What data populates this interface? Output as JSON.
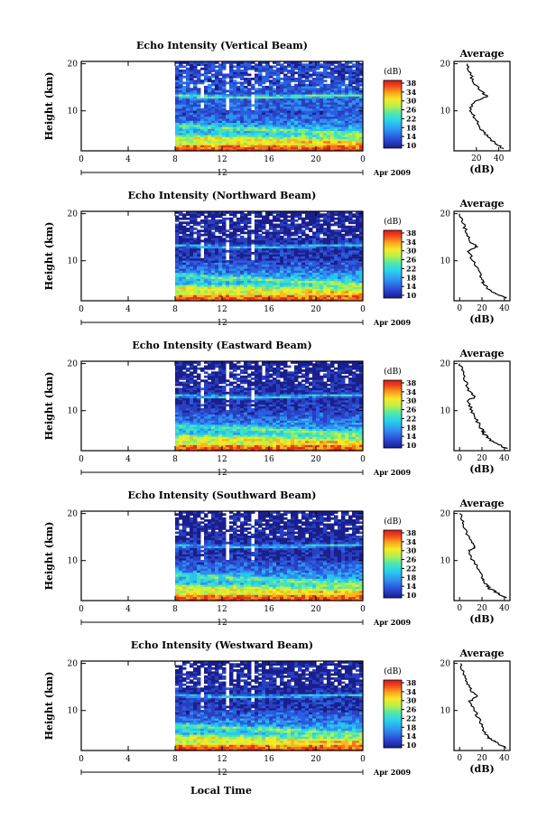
{
  "figure": {
    "xlabel": "Local Time",
    "date_label": "Apr 2009",
    "colorbar_unit": "(dB)",
    "colorbar_ticks": [
      "38",
      "34",
      "30",
      "26",
      "22",
      "18",
      "14",
      "10"
    ],
    "profile_title": "Average",
    "profile_xlabel": "(dB)",
    "height_label": "Height (km)"
  },
  "chart_data": [
    {
      "type": "heatmap",
      "title": "Echo Intensity (Vertical Beam)",
      "xlabel": "",
      "ylabel": "Height (km)",
      "x_ticks": [
        "0",
        "4",
        "8",
        "12",
        "16",
        "20",
        "0"
      ],
      "y_ticks": [
        "20",
        "10"
      ],
      "xlim": [
        0,
        24
      ],
      "ylim": [
        1.5,
        20.5
      ],
      "data_start_hour": 8,
      "date_marker": "12",
      "colorbar": {
        "label": "(dB)",
        "range": [
          10,
          38
        ],
        "ticks": [
          "38",
          "34",
          "30",
          "26",
          "22",
          "18",
          "14",
          "10"
        ]
      },
      "profile": {
        "title": "Average",
        "xlabel": "(dB)",
        "x_ticks": [
          "20",
          "40"
        ],
        "y_ticks": [
          "20",
          "10"
        ],
        "xlim": [
          0,
          50
        ],
        "heights": [
          2,
          3,
          4,
          5,
          6,
          8,
          10,
          12,
          13,
          14,
          16,
          18,
          20
        ],
        "values": [
          43,
          38,
          32,
          28,
          24,
          20,
          14,
          18,
          30,
          25,
          18,
          14,
          12
        ]
      }
    },
    {
      "type": "heatmap",
      "title": "Echo Intensity (Northward Beam)",
      "xlabel": "",
      "ylabel": "Height (km)",
      "x_ticks": [
        "0",
        "4",
        "8",
        "12",
        "16",
        "20",
        "0"
      ],
      "y_ticks": [
        "20",
        "10"
      ],
      "xlim": [
        0,
        24
      ],
      "ylim": [
        1.5,
        20.5
      ],
      "data_start_hour": 8,
      "date_marker": "12",
      "colorbar": {
        "label": "(dB)",
        "range": [
          10,
          38
        ],
        "ticks": [
          "38",
          "34",
          "30",
          "26",
          "22",
          "18",
          "14",
          "10"
        ]
      },
      "profile": {
        "title": "Average",
        "xlabel": "(dB)",
        "x_ticks": [
          "0",
          "20",
          "40"
        ],
        "y_ticks": [
          "20",
          "10"
        ],
        "xlim": [
          -5,
          45
        ],
        "heights": [
          2,
          3,
          4,
          5,
          6,
          8,
          10,
          12,
          13,
          14,
          16,
          18,
          20
        ],
        "values": [
          42,
          32,
          25,
          22,
          20,
          16,
          12,
          8,
          15,
          10,
          6,
          3,
          0
        ]
      }
    },
    {
      "type": "heatmap",
      "title": "Echo Intensity (Eastward Beam)",
      "xlabel": "",
      "ylabel": "Height (km)",
      "x_ticks": [
        "0",
        "4",
        "8",
        "12",
        "16",
        "20",
        "0"
      ],
      "y_ticks": [
        "20",
        "10"
      ],
      "xlim": [
        0,
        24
      ],
      "ylim": [
        1.5,
        20.5
      ],
      "data_start_hour": 8,
      "date_marker": "12",
      "colorbar": {
        "label": "(dB)",
        "range": [
          10,
          38
        ],
        "ticks": [
          "38",
          "34",
          "30",
          "26",
          "22",
          "18",
          "14",
          "10"
        ]
      },
      "profile": {
        "title": "Average",
        "xlabel": "(dB)",
        "x_ticks": [
          "0",
          "20",
          "40"
        ],
        "y_ticks": [
          "20",
          "10"
        ],
        "xlim": [
          -5,
          45
        ],
        "heights": [
          2,
          3,
          4,
          5,
          6,
          8,
          10,
          12,
          13,
          14,
          16,
          18,
          20
        ],
        "values": [
          42,
          33,
          26,
          22,
          20,
          15,
          11,
          7,
          14,
          9,
          6,
          3,
          0
        ]
      }
    },
    {
      "type": "heatmap",
      "title": "Echo Intensity (Southward Beam)",
      "xlabel": "",
      "ylabel": "Height (km)",
      "x_ticks": [
        "0",
        "4",
        "8",
        "12",
        "16",
        "20",
        "0"
      ],
      "y_ticks": [
        "20",
        "10"
      ],
      "xlim": [
        0,
        24
      ],
      "ylim": [
        1.5,
        20.5
      ],
      "data_start_hour": 8,
      "date_marker": "12",
      "colorbar": {
        "label": "(dB)",
        "range": [
          10,
          38
        ],
        "ticks": [
          "38",
          "34",
          "30",
          "26",
          "22",
          "18",
          "14",
          "10"
        ]
      },
      "profile": {
        "title": "Average",
        "xlabel": "(dB)",
        "x_ticks": [
          "0",
          "20",
          "40"
        ],
        "y_ticks": [
          "20",
          "10"
        ],
        "xlim": [
          -5,
          45
        ],
        "heights": [
          2,
          3,
          4,
          5,
          6,
          8,
          10,
          12,
          13,
          14,
          16,
          18,
          20
        ],
        "values": [
          42,
          35,
          27,
          24,
          21,
          17,
          12,
          8,
          15,
          10,
          6,
          3,
          0
        ]
      }
    },
    {
      "type": "heatmap",
      "title": "Echo Intensity (Westward Beam)",
      "xlabel": "Local Time",
      "ylabel": "Height (km)",
      "x_ticks": [
        "0",
        "4",
        "8",
        "12",
        "16",
        "20",
        "0"
      ],
      "y_ticks": [
        "20",
        "10"
      ],
      "xlim": [
        0,
        24
      ],
      "ylim": [
        1.5,
        20.5
      ],
      "data_start_hour": 8,
      "date_marker": "12",
      "colorbar": {
        "label": "(dB)",
        "range": [
          10,
          38
        ],
        "ticks": [
          "38",
          "34",
          "30",
          "26",
          "22",
          "18",
          "14",
          "10"
        ]
      },
      "profile": {
        "title": "Average",
        "xlabel": "(dB)",
        "x_ticks": [
          "0",
          "20",
          "40"
        ],
        "y_ticks": [
          "20",
          "10"
        ],
        "xlim": [
          -5,
          45
        ],
        "heights": [
          2,
          3,
          4,
          5,
          6,
          8,
          10,
          12,
          13,
          14,
          16,
          18,
          20
        ],
        "values": [
          42,
          34,
          27,
          23,
          21,
          18,
          13,
          9,
          16,
          11,
          7,
          4,
          1
        ]
      }
    }
  ]
}
